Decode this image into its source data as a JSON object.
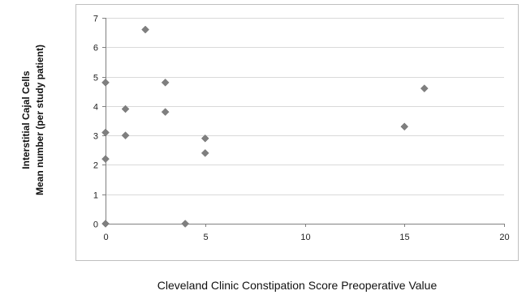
{
  "chart_data": {
    "type": "scatter",
    "xlabel": "Cleveland Clinic Constipation Score Preoperative Value",
    "ylabel": [
      "Interstitial Cajal Cells",
      "Mean number (per study patient)"
    ],
    "xlim": [
      0,
      20
    ],
    "ylim": [
      0,
      7
    ],
    "x_ticks": [
      "0",
      "5",
      "10",
      "15",
      "20"
    ],
    "y_ticks": [
      "0",
      "1",
      "2",
      "3",
      "4",
      "5",
      "6",
      "7"
    ],
    "grid": "horizontal",
    "marker": "diamond",
    "marker_color": "#7f7f7f",
    "points": [
      {
        "x": 0,
        "y": 4.8
      },
      {
        "x": 0,
        "y": 3.1
      },
      {
        "x": 0,
        "y": 2.2
      },
      {
        "x": 0,
        "y": 0
      },
      {
        "x": 1,
        "y": 3.9
      },
      {
        "x": 1,
        "y": 3.0
      },
      {
        "x": 2,
        "y": 6.6
      },
      {
        "x": 3,
        "y": 4.8
      },
      {
        "x": 3,
        "y": 3.8
      },
      {
        "x": 4,
        "y": 0
      },
      {
        "x": 5,
        "y": 2.9
      },
      {
        "x": 5,
        "y": 2.4
      },
      {
        "x": 15,
        "y": 3.3
      },
      {
        "x": 16,
        "y": 4.6
      }
    ]
  }
}
